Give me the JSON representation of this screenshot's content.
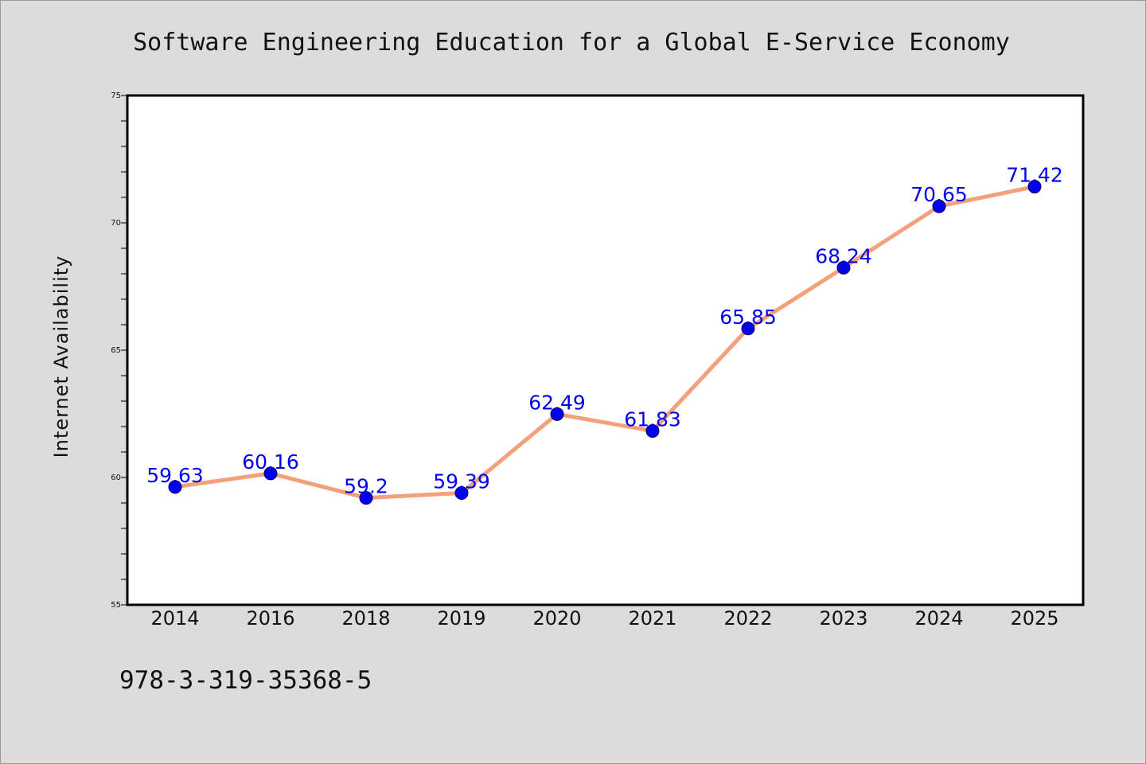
{
  "chart_data": {
    "type": "line",
    "title": "Software Engineering Education for a Global E-Service Economy",
    "xlabel": "",
    "ylabel": "Internet Availability",
    "categories": [
      "2014",
      "2016",
      "2018",
      "2019",
      "2020",
      "2021",
      "2022",
      "2023",
      "2024",
      "2025"
    ],
    "series": [
      {
        "values": [
          59.63,
          60.16,
          59.2,
          59.39,
          62.49,
          61.83,
          65.85,
          68.24,
          70.65,
          71.42
        ],
        "labels": [
          "59.63",
          "60.16",
          "59.2",
          "59.39",
          "62.49",
          "61.83",
          "65.85",
          "68.24",
          "70.65",
          "71.42"
        ],
        "line_color": "#f4a07a",
        "marker_color": "#0000ee"
      }
    ],
    "ylim": [
      55,
      75
    ],
    "yticks": [
      "55",
      "60",
      "65",
      "70",
      "75"
    ],
    "grid": false,
    "annotation": "978-3-319-35368-5"
  },
  "colors": {
    "background": "#dcdcdc",
    "plot_background": "#ffffff",
    "line": "#f4a07a",
    "marker": "#0000ee",
    "data_label": "#0000ee"
  }
}
